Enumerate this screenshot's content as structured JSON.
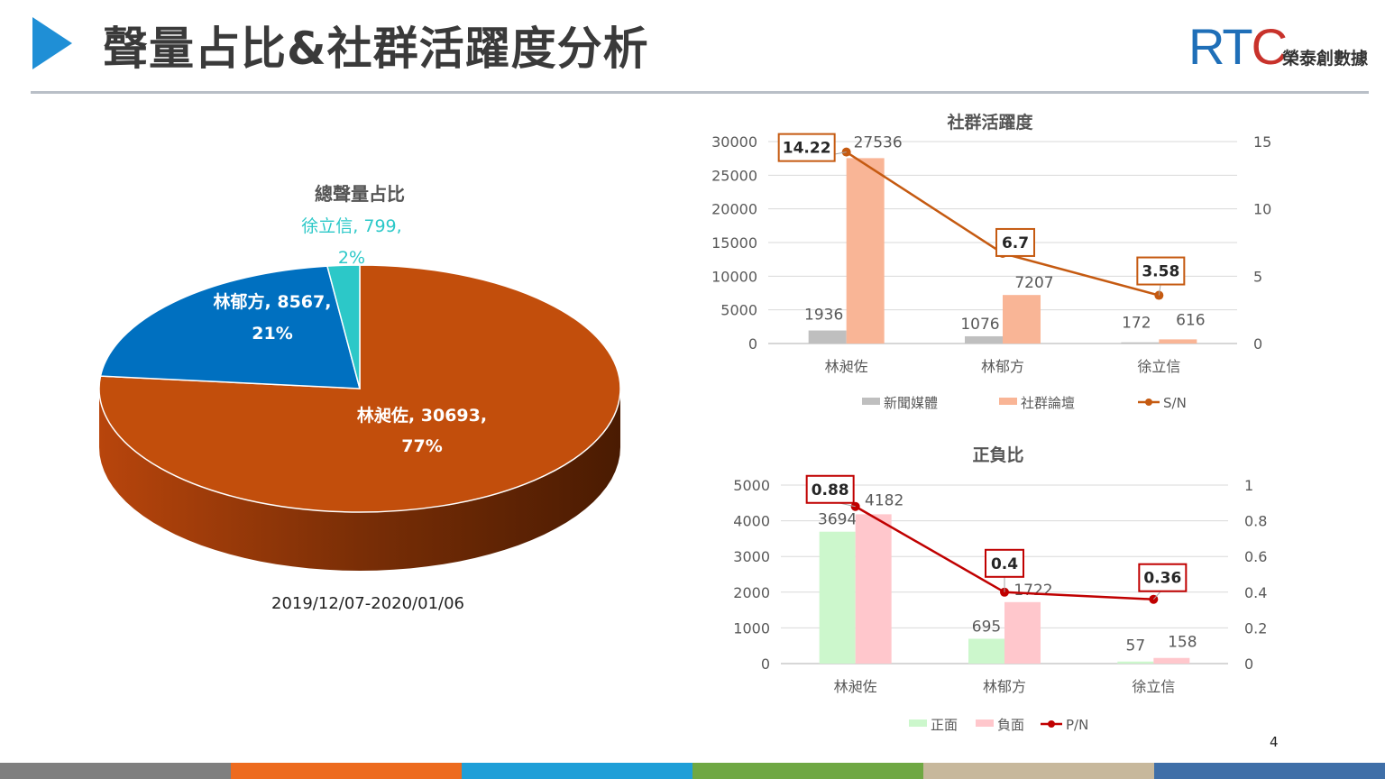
{
  "page": {
    "title": "聲量占比&社群活躍度分析",
    "page_number": "4"
  },
  "logo": {
    "mark_prefix": "RT",
    "mark_suffix": "C",
    "chinese_name": "榮泰創數據"
  },
  "colors": {
    "accent_blue": "#1f8fd6",
    "footer": [
      "#7f7f7f",
      "#ed6b1f",
      "#1f9fd8",
      "#6fa843",
      "#c7b89c",
      "#3f6fa8"
    ]
  },
  "chart_data": [
    {
      "type": "pie",
      "title": "總聲量占比",
      "caption": "2019/12/07-2020/01/06",
      "slices": [
        {
          "name": "林昶佐",
          "value": 30693,
          "percent": "77%",
          "color": "#c24e0c"
        },
        {
          "name": "林郁方",
          "value": 8567,
          "percent": "21%",
          "color": "#0070c0"
        },
        {
          "name": "徐立信",
          "value": 799,
          "percent": "2%",
          "color": "#2cc8c8"
        }
      ],
      "labels": [
        {
          "line1": "林昶佐, 30693,",
          "line2": "77%"
        },
        {
          "line1": "林郁方, 8567,",
          "line2": "21%"
        },
        {
          "line1": "徐立信, 799,",
          "line2": "2%"
        }
      ],
      "style": "3d"
    },
    {
      "type": "bar",
      "title": "社群活躍度",
      "categories": [
        "林昶佐",
        "林郁方",
        "徐立信"
      ],
      "series": [
        {
          "name": "新聞媒體",
          "values": [
            1936,
            1076,
            172
          ],
          "color": "#bfbfbf"
        },
        {
          "name": "社群論壇",
          "values": [
            27536,
            7207,
            616
          ],
          "color": "#f9b596"
        }
      ],
      "line_series": {
        "name": "S/N",
        "values": [
          14.22,
          6.7,
          3.58
        ],
        "value_labels": [
          "14.22",
          "6.7",
          "3.58"
        ],
        "color": "#c55a11"
      },
      "y_ticks": [
        "0",
        "5000",
        "10000",
        "15000",
        "20000",
        "25000",
        "30000"
      ],
      "ylim": [
        0,
        30000
      ],
      "y2_ticks": [
        "0",
        "5",
        "10",
        "15"
      ],
      "y2lim": [
        0,
        15
      ],
      "legend": "bottom",
      "grid": true
    },
    {
      "type": "bar",
      "title": "正負比",
      "categories": [
        "林昶佐",
        "林郁方",
        "徐立信"
      ],
      "series": [
        {
          "name": "正面",
          "values": [
            3694,
            695,
            57
          ],
          "color": "#ccf7cc"
        },
        {
          "name": "負面",
          "values": [
            4182,
            1722,
            158
          ],
          "color": "#ffc7cc"
        }
      ],
      "line_series": {
        "name": "P/N",
        "values": [
          0.88,
          0.4,
          0.36
        ],
        "value_labels": [
          "0.88",
          "0.4",
          "0.36"
        ],
        "color": "#c00000"
      },
      "y_ticks": [
        "0",
        "1000",
        "2000",
        "3000",
        "4000",
        "5000"
      ],
      "ylim": [
        0,
        5000
      ],
      "y2_ticks": [
        "0",
        "0.2",
        "0.4",
        "0.6",
        "0.8",
        "1"
      ],
      "y2lim": [
        0,
        1
      ],
      "legend": "bottom",
      "grid": true
    }
  ]
}
